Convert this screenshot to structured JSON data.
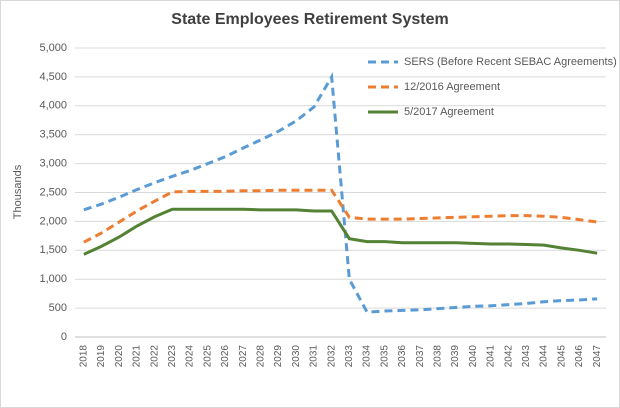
{
  "chart_data": {
    "type": "line",
    "title": "State Employees Retirement System",
    "y_label": "Thousands",
    "categories": [
      "2018",
      "2019",
      "2020",
      "2021",
      "2022",
      "2023",
      "2024",
      "2025",
      "2026",
      "2027",
      "2028",
      "2029",
      "2030",
      "2031",
      "2032",
      "2033",
      "2034",
      "2035",
      "2036",
      "2037",
      "2038",
      "2039",
      "2040",
      "2041",
      "2042",
      "2043",
      "2044",
      "2045",
      "2046",
      "2047"
    ],
    "series": [
      {
        "name": "SERS (Before Recent SEBAC Agreements)",
        "color": "#5b9bd5",
        "dashed": true,
        "values": [
          2200,
          2300,
          2420,
          2550,
          2670,
          2780,
          2880,
          3000,
          3120,
          3270,
          3410,
          3560,
          3740,
          3980,
          4500,
          1000,
          430,
          450,
          460,
          470,
          490,
          510,
          530,
          540,
          560,
          580,
          610,
          630,
          640,
          660
        ]
      },
      {
        "name": "12/2016 Agreement",
        "color": "#ed7d31",
        "dashed": true,
        "values": [
          1640,
          1800,
          1990,
          2180,
          2350,
          2510,
          2520,
          2520,
          2520,
          2530,
          2530,
          2540,
          2540,
          2540,
          2540,
          2070,
          2040,
          2040,
          2040,
          2050,
          2060,
          2070,
          2080,
          2090,
          2100,
          2100,
          2090,
          2070,
          2030,
          1990
        ]
      },
      {
        "name": "5/2017 Agreement",
        "color": "#548235",
        "dashed": false,
        "values": [
          1430,
          1570,
          1730,
          1920,
          2080,
          2210,
          2210,
          2210,
          2210,
          2210,
          2200,
          2200,
          2200,
          2180,
          2180,
          1700,
          1650,
          1650,
          1630,
          1630,
          1630,
          1630,
          1620,
          1610,
          1610,
          1600,
          1590,
          1540,
          1500,
          1450
        ]
      }
    ],
    "ylim": [
      0,
      5000
    ],
    "yticks": [
      0,
      500,
      {
        "value": 1000,
        "label": "1,000"
      },
      {
        "value": 1500,
        "label": "1,500"
      },
      {
        "value": 2000,
        "label": "2,000"
      },
      {
        "value": 2500,
        "label": "2,500"
      },
      {
        "value": 3000,
        "label": "3,000"
      },
      {
        "value": 3500,
        "label": "3,500"
      },
      {
        "value": 4000,
        "label": "4,000"
      },
      {
        "value": 4500,
        "label": "4,500"
      },
      {
        "value": 5000,
        "label": "5,000"
      }
    ],
    "grid": true,
    "legend": "top-right"
  }
}
